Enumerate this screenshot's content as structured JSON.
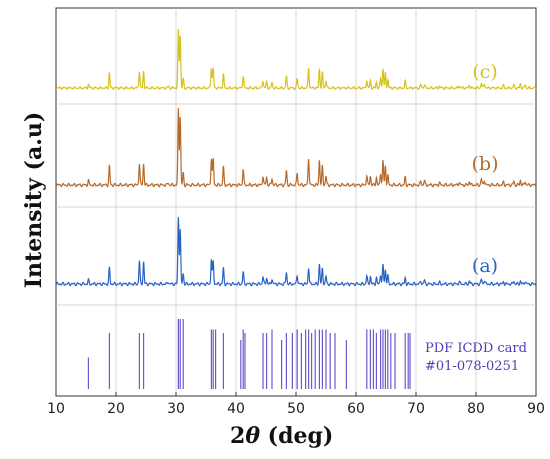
{
  "chart_data": {
    "type": "line",
    "title": "",
    "xlabel_prefix": "2",
    "xlabel_symbol": "θ",
    "xlabel_suffix": " (deg)",
    "ylabel": "Intensity (a.u)",
    "xlim": [
      10,
      90
    ],
    "xticks": [
      "10",
      "20",
      "30",
      "40",
      "50",
      "60",
      "70",
      "80",
      "90"
    ],
    "grid": true,
    "series": [
      {
        "name": "(c)",
        "color": "#d8c21c",
        "peaks": [
          [
            15.4,
            0.06
          ],
          [
            18.9,
            0.25
          ],
          [
            23.9,
            0.28
          ],
          [
            24.6,
            0.27
          ],
          [
            28.7,
            0.03
          ],
          [
            30.4,
            0.93
          ],
          [
            30.7,
            0.85
          ],
          [
            31.2,
            0.15
          ],
          [
            35.9,
            0.33
          ],
          [
            36.2,
            0.32
          ],
          [
            37.9,
            0.23
          ],
          [
            41.2,
            0.2
          ],
          [
            44.5,
            0.12
          ],
          [
            45.1,
            0.1
          ],
          [
            46.0,
            0.09
          ],
          [
            48.4,
            0.19
          ],
          [
            50.2,
            0.15
          ],
          [
            52.1,
            0.33
          ],
          [
            53.9,
            0.31
          ],
          [
            54.4,
            0.25
          ],
          [
            55.0,
            0.12
          ],
          [
            61.8,
            0.13
          ],
          [
            62.4,
            0.12
          ],
          [
            63.4,
            0.1
          ],
          [
            64.1,
            0.16
          ],
          [
            64.5,
            0.31
          ],
          [
            64.9,
            0.24
          ],
          [
            65.3,
            0.13
          ],
          [
            68.2,
            0.1
          ],
          [
            70.8,
            0.05
          ],
          [
            71.4,
            0.06
          ],
          [
            73.9,
            0.03
          ],
          [
            77.2,
            0.04
          ],
          [
            78.9,
            0.05
          ],
          [
            80.9,
            0.08
          ],
          [
            81.4,
            0.07
          ],
          [
            84.6,
            0.04
          ],
          [
            86.3,
            0.05
          ],
          [
            87.4,
            0.06
          ],
          [
            88.2,
            0.05
          ]
        ]
      },
      {
        "name": "(b)",
        "color": "#b56a2c",
        "peaks": [
          [
            15.4,
            0.06
          ],
          [
            18.9,
            0.25
          ],
          [
            23.9,
            0.29
          ],
          [
            24.6,
            0.28
          ],
          [
            28.7,
            0.03
          ],
          [
            30.4,
            1.0
          ],
          [
            30.7,
            0.9
          ],
          [
            31.2,
            0.16
          ],
          [
            35.9,
            0.36
          ],
          [
            36.2,
            0.34
          ],
          [
            37.9,
            0.24
          ],
          [
            41.2,
            0.21
          ],
          [
            44.5,
            0.12
          ],
          [
            45.1,
            0.1
          ],
          [
            46.0,
            0.09
          ],
          [
            48.4,
            0.19
          ],
          [
            50.2,
            0.16
          ],
          [
            52.1,
            0.36
          ],
          [
            53.9,
            0.33
          ],
          [
            54.4,
            0.25
          ],
          [
            55.0,
            0.12
          ],
          [
            61.8,
            0.13
          ],
          [
            62.4,
            0.12
          ],
          [
            63.4,
            0.1
          ],
          [
            64.1,
            0.16
          ],
          [
            64.5,
            0.32
          ],
          [
            64.9,
            0.25
          ],
          [
            65.3,
            0.13
          ],
          [
            68.2,
            0.1
          ],
          [
            70.8,
            0.05
          ],
          [
            71.4,
            0.06
          ],
          [
            73.9,
            0.03
          ],
          [
            77.2,
            0.04
          ],
          [
            78.9,
            0.05
          ],
          [
            80.9,
            0.08
          ],
          [
            81.4,
            0.07
          ],
          [
            84.6,
            0.04
          ],
          [
            86.3,
            0.05
          ],
          [
            87.4,
            0.06
          ],
          [
            88.2,
            0.05
          ]
        ]
      },
      {
        "name": "(a)",
        "color": "#2a62c4",
        "peaks": [
          [
            15.4,
            0.05
          ],
          [
            18.9,
            0.21
          ],
          [
            23.9,
            0.31
          ],
          [
            24.6,
            0.29
          ],
          [
            28.7,
            0.03
          ],
          [
            30.4,
            0.88
          ],
          [
            30.7,
            0.72
          ],
          [
            31.2,
            0.14
          ],
          [
            35.9,
            0.33
          ],
          [
            36.2,
            0.3
          ],
          [
            37.9,
            0.21
          ],
          [
            41.2,
            0.16
          ],
          [
            44.5,
            0.1
          ],
          [
            45.1,
            0.08
          ],
          [
            46.0,
            0.07
          ],
          [
            48.4,
            0.16
          ],
          [
            50.2,
            0.12
          ],
          [
            52.1,
            0.22
          ],
          [
            53.9,
            0.26
          ],
          [
            54.4,
            0.21
          ],
          [
            55.0,
            0.1
          ],
          [
            61.8,
            0.11
          ],
          [
            62.4,
            0.1
          ],
          [
            63.4,
            0.08
          ],
          [
            64.1,
            0.13
          ],
          [
            64.5,
            0.25
          ],
          [
            64.9,
            0.19
          ],
          [
            65.3,
            0.11
          ],
          [
            68.2,
            0.08
          ],
          [
            70.8,
            0.04
          ],
          [
            71.4,
            0.05
          ],
          [
            73.9,
            0.02
          ],
          [
            77.2,
            0.03
          ],
          [
            78.9,
            0.04
          ],
          [
            80.9,
            0.06
          ],
          [
            81.4,
            0.05
          ],
          [
            84.6,
            0.03
          ],
          [
            86.3,
            0.04
          ],
          [
            87.4,
            0.04
          ],
          [
            88.2,
            0.04
          ]
        ]
      }
    ],
    "reference": {
      "label_line1": "PDF ICDD card",
      "label_line2": "#01-078-0251",
      "color": "#6a5acd",
      "lines": [
        [
          15.4,
          0.45
        ],
        [
          18.9,
          0.8
        ],
        [
          23.9,
          0.8
        ],
        [
          24.6,
          0.8
        ],
        [
          30.4,
          1.0
        ],
        [
          30.7,
          1.0
        ],
        [
          31.2,
          1.0
        ],
        [
          35.9,
          0.85
        ],
        [
          36.2,
          0.85
        ],
        [
          36.6,
          0.85
        ],
        [
          37.9,
          0.8
        ],
        [
          40.8,
          0.7
        ],
        [
          41.2,
          0.85
        ],
        [
          41.5,
          0.8
        ],
        [
          44.5,
          0.8
        ],
        [
          45.1,
          0.8
        ],
        [
          46.0,
          0.85
        ],
        [
          47.6,
          0.7
        ],
        [
          48.4,
          0.8
        ],
        [
          49.4,
          0.8
        ],
        [
          50.2,
          0.85
        ],
        [
          50.9,
          0.8
        ],
        [
          51.6,
          0.85
        ],
        [
          52.1,
          0.85
        ],
        [
          52.6,
          0.8
        ],
        [
          53.2,
          0.85
        ],
        [
          53.9,
          0.85
        ],
        [
          54.4,
          0.85
        ],
        [
          55.0,
          0.85
        ],
        [
          55.7,
          0.8
        ],
        [
          56.5,
          0.8
        ],
        [
          58.4,
          0.7
        ],
        [
          61.8,
          0.85
        ],
        [
          62.4,
          0.85
        ],
        [
          62.9,
          0.85
        ],
        [
          63.4,
          0.8
        ],
        [
          64.1,
          0.85
        ],
        [
          64.5,
          0.85
        ],
        [
          64.9,
          0.85
        ],
        [
          65.3,
          0.85
        ],
        [
          65.8,
          0.8
        ],
        [
          66.5,
          0.8
        ],
        [
          68.2,
          0.8
        ],
        [
          68.7,
          0.8
        ],
        [
          69.0,
          0.8
        ]
      ]
    }
  }
}
